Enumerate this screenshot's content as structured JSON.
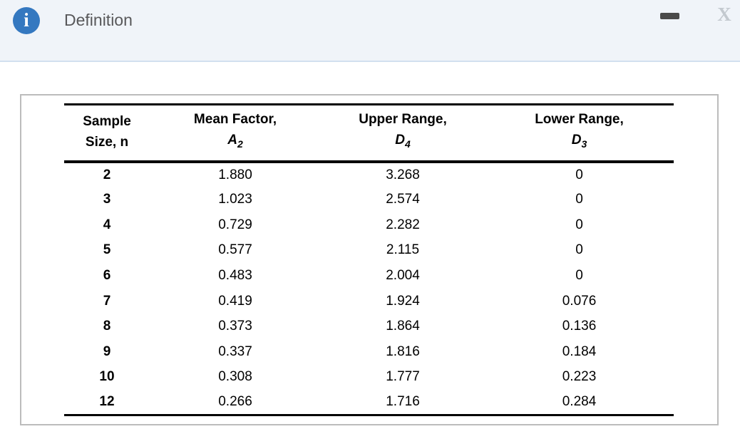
{
  "window": {
    "title": "Definition",
    "close_glyph": "X"
  },
  "colors": {
    "titlebar_bg": "#f0f4f9",
    "titlebar_border": "#d2e0ef",
    "info_icon_blue": "#3478c0",
    "title_text": "#58585a",
    "minimize_dash": "#4a4a4a",
    "close_gray": "#c3c9cf",
    "panel_border": "#bcbcbc",
    "table_lines": "#000000"
  },
  "table": {
    "columns": [
      {
        "line1": "Sample",
        "line2": "Size, n"
      },
      {
        "line1": "Mean Factor,",
        "symbol": "A",
        "subscript": "2"
      },
      {
        "line1": "Upper Range,",
        "symbol": "D",
        "subscript": "4"
      },
      {
        "line1": "Lower Range,",
        "symbol": "D",
        "subscript": "3"
      }
    ],
    "rows": [
      [
        "2",
        "1.880",
        "3.268",
        "0"
      ],
      [
        "3",
        "1.023",
        "2.574",
        "0"
      ],
      [
        "4",
        "0.729",
        "2.282",
        "0"
      ],
      [
        "5",
        "0.577",
        "2.115",
        "0"
      ],
      [
        "6",
        "0.483",
        "2.004",
        "0"
      ],
      [
        "7",
        "0.419",
        "1.924",
        "0.076"
      ],
      [
        "8",
        "0.373",
        "1.864",
        "0.136"
      ],
      [
        "9",
        "0.337",
        "1.816",
        "0.184"
      ],
      [
        "10",
        "0.308",
        "1.777",
        "0.223"
      ],
      [
        "12",
        "0.266",
        "1.716",
        "0.284"
      ]
    ]
  }
}
